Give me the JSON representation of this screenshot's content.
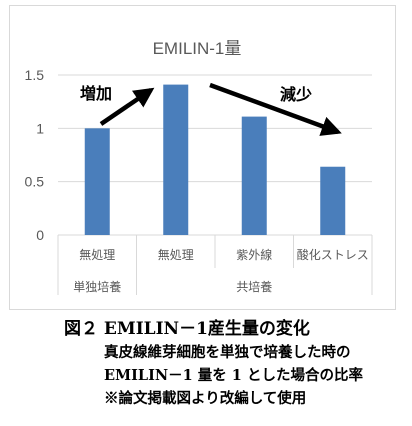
{
  "chart_data": {
    "type": "bar",
    "title": "EMILIN-1量",
    "categories": [
      "無処理",
      "無処理",
      "紫外線",
      "酸化ストレス"
    ],
    "groups": [
      {
        "label": "単独培養",
        "categories": [
          "無処理"
        ]
      },
      {
        "label": "共培養",
        "categories": [
          "無処理",
          "紫外線",
          "酸化ストレス"
        ]
      }
    ],
    "values": [
      1.0,
      1.41,
      1.11,
      0.64
    ],
    "ylim": [
      0,
      1.5
    ],
    "yticks": [
      "0",
      "0.5",
      "1",
      "1.5"
    ],
    "ytick_values": [
      0,
      0.5,
      1,
      1.5
    ],
    "grid": true,
    "bar_color": "#4a7ebb",
    "annotations": [
      "増加",
      "減少"
    ]
  },
  "caption": {
    "title": "図２ EMILIN－1産生量の変化",
    "lines": [
      "真皮線維芽細胞を単独で培養した時の",
      "EMILIN－1 量を 1 とした場合の比率",
      "※論文掲載図より改編して使用"
    ]
  }
}
